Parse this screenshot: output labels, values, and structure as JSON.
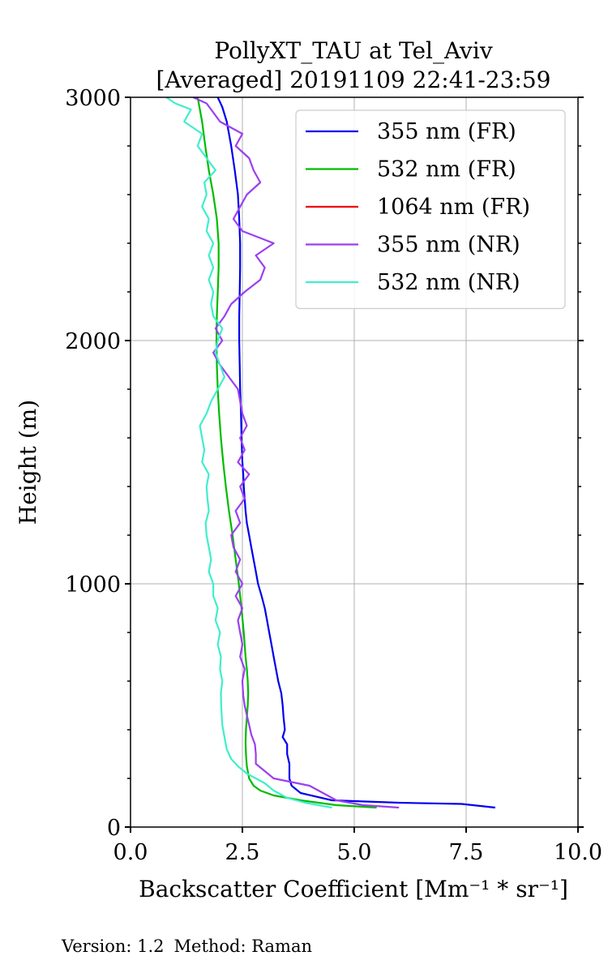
{
  "chart_data": {
    "type": "line",
    "title": "PollyXT_TAU at Tel_Aviv",
    "subtitle": "[Averaged] 20191109 22:41-23:59",
    "xlabel": "Backscatter Coefficient [Mm⁻¹ * sr⁻¹]",
    "ylabel": "Height (m)",
    "xlim": [
      0,
      10
    ],
    "ylim": [
      0,
      3000
    ],
    "xticks": [
      "0.0",
      "2.5",
      "5.0",
      "7.5",
      "10.0"
    ],
    "yticks": [
      "0",
      "1000",
      "2000",
      "3000"
    ],
    "grid": true,
    "legend_position": "top-right",
    "series": [
      {
        "name": "355 nm (FR)",
        "color": "#0000ee",
        "points": [
          [
            8.15,
            80
          ],
          [
            7.4,
            95
          ],
          [
            6.0,
            100
          ],
          [
            4.5,
            110
          ],
          [
            3.8,
            140
          ],
          [
            3.6,
            170
          ],
          [
            3.55,
            200
          ],
          [
            3.55,
            260
          ],
          [
            3.5,
            300
          ],
          [
            3.5,
            340
          ],
          [
            3.4,
            370
          ],
          [
            3.45,
            400
          ],
          [
            3.42,
            450
          ],
          [
            3.4,
            500
          ],
          [
            3.37,
            550
          ],
          [
            3.3,
            600
          ],
          [
            3.25,
            650
          ],
          [
            3.2,
            700
          ],
          [
            3.15,
            750
          ],
          [
            3.1,
            800
          ],
          [
            3.05,
            850
          ],
          [
            3.0,
            900
          ],
          [
            2.93,
            950
          ],
          [
            2.85,
            1000
          ],
          [
            2.8,
            1050
          ],
          [
            2.75,
            1100
          ],
          [
            2.7,
            1150
          ],
          [
            2.65,
            1200
          ],
          [
            2.6,
            1250
          ],
          [
            2.57,
            1300
          ],
          [
            2.55,
            1350
          ],
          [
            2.53,
            1400
          ],
          [
            2.52,
            1450
          ],
          [
            2.5,
            1500
          ],
          [
            2.48,
            1600
          ],
          [
            2.47,
            1700
          ],
          [
            2.45,
            1800
          ],
          [
            2.44,
            1900
          ],
          [
            2.43,
            2000
          ],
          [
            2.43,
            2100
          ],
          [
            2.44,
            2200
          ],
          [
            2.45,
            2300
          ],
          [
            2.45,
            2400
          ],
          [
            2.43,
            2500
          ],
          [
            2.4,
            2600
          ],
          [
            2.33,
            2700
          ],
          [
            2.25,
            2800
          ],
          [
            2.15,
            2900
          ],
          [
            2.05,
            2960
          ],
          [
            1.95,
            3000
          ]
        ]
      },
      {
        "name": "532 nm (FR)",
        "color": "#00bb00",
        "points": [
          [
            5.5,
            80
          ],
          [
            4.6,
            90
          ],
          [
            3.8,
            110
          ],
          [
            3.2,
            130
          ],
          [
            2.9,
            150
          ],
          [
            2.75,
            170
          ],
          [
            2.65,
            200
          ],
          [
            2.6,
            250
          ],
          [
            2.58,
            300
          ],
          [
            2.57,
            350
          ],
          [
            2.58,
            400
          ],
          [
            2.6,
            450
          ],
          [
            2.62,
            500
          ],
          [
            2.63,
            550
          ],
          [
            2.62,
            600
          ],
          [
            2.6,
            650
          ],
          [
            2.57,
            700
          ],
          [
            2.53,
            800
          ],
          [
            2.48,
            900
          ],
          [
            2.42,
            1000
          ],
          [
            2.35,
            1100
          ],
          [
            2.28,
            1200
          ],
          [
            2.2,
            1300
          ],
          [
            2.13,
            1400
          ],
          [
            2.07,
            1500
          ],
          [
            2.02,
            1600
          ],
          [
            1.98,
            1700
          ],
          [
            1.95,
            1800
          ],
          [
            1.93,
            1900
          ],
          [
            1.92,
            2000
          ],
          [
            1.93,
            2100
          ],
          [
            1.95,
            2200
          ],
          [
            1.97,
            2300
          ],
          [
            1.97,
            2400
          ],
          [
            1.93,
            2500
          ],
          [
            1.85,
            2600
          ],
          [
            1.75,
            2700
          ],
          [
            1.67,
            2800
          ],
          [
            1.6,
            2900
          ],
          [
            1.5,
            3000
          ]
        ]
      },
      {
        "name": "1064 nm (FR)",
        "color": "#ee0000",
        "points": []
      },
      {
        "name": "355 nm (NR)",
        "color": "#9b3ff0",
        "points": [
          [
            6.0,
            80
          ],
          [
            5.2,
            90
          ],
          [
            4.6,
            110
          ],
          [
            4.3,
            140
          ],
          [
            4.0,
            170
          ],
          [
            3.2,
            200
          ],
          [
            3.0,
            230
          ],
          [
            2.8,
            260
          ],
          [
            2.8,
            300
          ],
          [
            2.78,
            340
          ],
          [
            2.7,
            380
          ],
          [
            2.65,
            420
          ],
          [
            2.6,
            460
          ],
          [
            2.55,
            500
          ],
          [
            2.52,
            540
          ],
          [
            2.5,
            600
          ],
          [
            2.55,
            650
          ],
          [
            2.45,
            700
          ],
          [
            2.5,
            750
          ],
          [
            2.45,
            800
          ],
          [
            2.4,
            850
          ],
          [
            2.5,
            900
          ],
          [
            2.35,
            950
          ],
          [
            2.5,
            1000
          ],
          [
            2.35,
            1050
          ],
          [
            2.45,
            1100
          ],
          [
            2.3,
            1150
          ],
          [
            2.25,
            1200
          ],
          [
            2.45,
            1250
          ],
          [
            2.35,
            1300
          ],
          [
            2.55,
            1350
          ],
          [
            2.45,
            1400
          ],
          [
            2.65,
            1450
          ],
          [
            2.4,
            1500
          ],
          [
            2.55,
            1550
          ],
          [
            2.45,
            1600
          ],
          [
            2.6,
            1650
          ],
          [
            2.5,
            1700
          ],
          [
            2.45,
            1750
          ],
          [
            2.4,
            1800
          ],
          [
            2.2,
            1850
          ],
          [
            2.0,
            1900
          ],
          [
            1.85,
            1950
          ],
          [
            2.05,
            2000
          ],
          [
            1.9,
            2050
          ],
          [
            2.1,
            2100
          ],
          [
            2.25,
            2150
          ],
          [
            2.55,
            2200
          ],
          [
            2.9,
            2250
          ],
          [
            3.0,
            2300
          ],
          [
            2.8,
            2350
          ],
          [
            3.2,
            2400
          ],
          [
            2.5,
            2450
          ],
          [
            2.3,
            2500
          ],
          [
            2.45,
            2550
          ],
          [
            2.6,
            2600
          ],
          [
            2.9,
            2650
          ],
          [
            2.75,
            2700
          ],
          [
            2.65,
            2750
          ],
          [
            2.35,
            2800
          ],
          [
            2.5,
            2850
          ],
          [
            2.0,
            2900
          ],
          [
            1.8,
            2950
          ],
          [
            1.7,
            2975
          ],
          [
            1.4,
            3000
          ]
        ]
      },
      {
        "name": "532 nm (NR)",
        "color": "#40eecc",
        "points": [
          [
            4.5,
            80
          ],
          [
            3.9,
            100
          ],
          [
            3.5,
            120
          ],
          [
            3.2,
            150
          ],
          [
            3.0,
            180
          ],
          [
            2.8,
            200
          ],
          [
            2.6,
            220
          ],
          [
            2.4,
            250
          ],
          [
            2.25,
            280
          ],
          [
            2.15,
            320
          ],
          [
            2.1,
            370
          ],
          [
            2.05,
            420
          ],
          [
            2.03,
            480
          ],
          [
            2.02,
            550
          ],
          [
            2.05,
            600
          ],
          [
            2.0,
            650
          ],
          [
            2.02,
            700
          ],
          [
            1.95,
            750
          ],
          [
            2.0,
            800
          ],
          [
            1.9,
            850
          ],
          [
            1.95,
            900
          ],
          [
            1.85,
            950
          ],
          [
            1.85,
            1000
          ],
          [
            1.75,
            1050
          ],
          [
            1.8,
            1100
          ],
          [
            1.75,
            1150
          ],
          [
            1.7,
            1200
          ],
          [
            1.68,
            1250
          ],
          [
            1.75,
            1300
          ],
          [
            1.72,
            1350
          ],
          [
            1.7,
            1400
          ],
          [
            1.75,
            1450
          ],
          [
            1.6,
            1500
          ],
          [
            1.65,
            1550
          ],
          [
            1.6,
            1600
          ],
          [
            1.55,
            1650
          ],
          [
            1.7,
            1700
          ],
          [
            1.8,
            1750
          ],
          [
            1.95,
            1800
          ],
          [
            2.1,
            1850
          ],
          [
            2.0,
            1900
          ],
          [
            1.9,
            1950
          ],
          [
            1.95,
            2000
          ],
          [
            2.05,
            2050
          ],
          [
            1.85,
            2100
          ],
          [
            1.8,
            2150
          ],
          [
            1.85,
            2200
          ],
          [
            1.75,
            2250
          ],
          [
            1.85,
            2300
          ],
          [
            1.75,
            2350
          ],
          [
            1.85,
            2400
          ],
          [
            1.7,
            2450
          ],
          [
            1.75,
            2500
          ],
          [
            1.6,
            2550
          ],
          [
            1.7,
            2600
          ],
          [
            1.65,
            2650
          ],
          [
            1.9,
            2700
          ],
          [
            1.7,
            2750
          ],
          [
            1.5,
            2800
          ],
          [
            1.6,
            2850
          ],
          [
            1.2,
            2900
          ],
          [
            1.35,
            2950
          ],
          [
            1.0,
            2975
          ],
          [
            0.8,
            3000
          ]
        ]
      }
    ]
  },
  "footer": {
    "version": "Version: 1.2",
    "method": "Method: Raman"
  }
}
